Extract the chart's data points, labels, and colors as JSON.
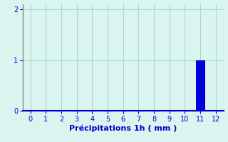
{
  "title": "Précipitations 1h ( mm )",
  "x_values": [
    0,
    1,
    2,
    3,
    4,
    5,
    6,
    7,
    8,
    9,
    10,
    11,
    12
  ],
  "bar_values": [
    0,
    0,
    0,
    0,
    0,
    0,
    0,
    0,
    0,
    0,
    0,
    1,
    0
  ],
  "bar_color": "#0000dd",
  "xlim": [
    -0.5,
    12.5
  ],
  "ylim": [
    0,
    2.1
  ],
  "yticks": [
    0,
    1,
    2
  ],
  "xticks": [
    0,
    1,
    2,
    3,
    4,
    5,
    6,
    7,
    8,
    9,
    10,
    11,
    12
  ],
  "background_color": "#daf5f0",
  "grid_color": "#aad8cc",
  "text_color": "#0000cc",
  "xlabel_fontsize": 8,
  "tick_fontsize": 7,
  "bar_width": 0.6
}
